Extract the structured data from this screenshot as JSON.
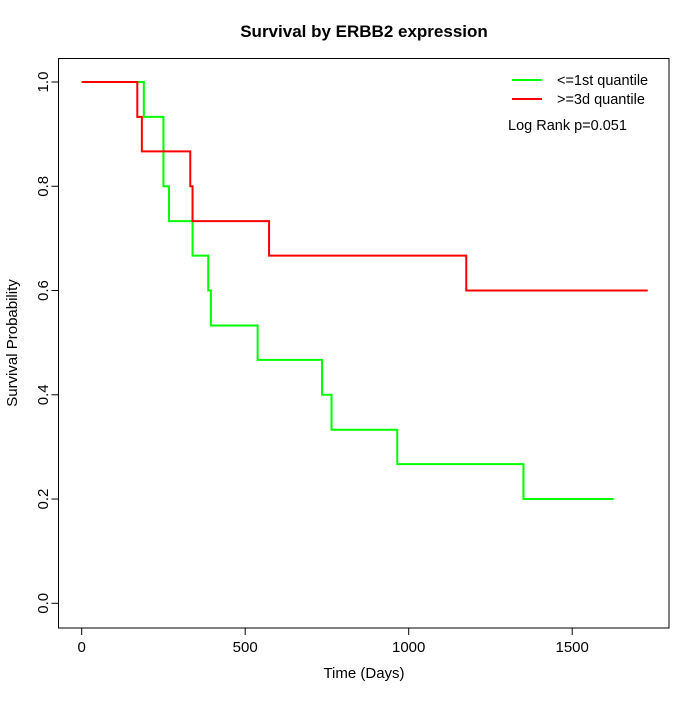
{
  "chart_data": {
    "type": "line",
    "subtype": "kaplan-meier-step",
    "title": "Survival by ERBB2 expression",
    "xlabel": "Time (Days)",
    "ylabel": "Survival Probability",
    "xlim": [
      0,
      1790
    ],
    "ylim": [
      0,
      1
    ],
    "x_ticks": [
      0,
      500,
      1000,
      1500
    ],
    "y_ticks": [
      0.0,
      0.2,
      0.4,
      0.6,
      0.8,
      1.0
    ],
    "grid": false,
    "legend_position": "top-right",
    "annotation": "Log Rank p=0.051",
    "series": [
      {
        "name": "<=1st quantile",
        "color": "#00ff00",
        "steps": [
          [
            0,
            1.0
          ],
          [
            190,
            0.933
          ],
          [
            250,
            0.8
          ],
          [
            267,
            0.733
          ],
          [
            339,
            0.667
          ],
          [
            387,
            0.6
          ],
          [
            395,
            0.533
          ],
          [
            538,
            0.467
          ],
          [
            735,
            0.4
          ],
          [
            764,
            0.333
          ],
          [
            965,
            0.267
          ],
          [
            1351,
            0.2
          ]
        ],
        "end_x": 1627
      },
      {
        "name": ">=3d quantile",
        "color": "#ff0000",
        "steps": [
          [
            0,
            1.0
          ],
          [
            170,
            0.933
          ],
          [
            184,
            0.867
          ],
          [
            332,
            0.8
          ],
          [
            339,
            0.733
          ],
          [
            573,
            0.667
          ],
          [
            1176,
            0.6
          ]
        ],
        "end_x": 1731
      }
    ]
  }
}
